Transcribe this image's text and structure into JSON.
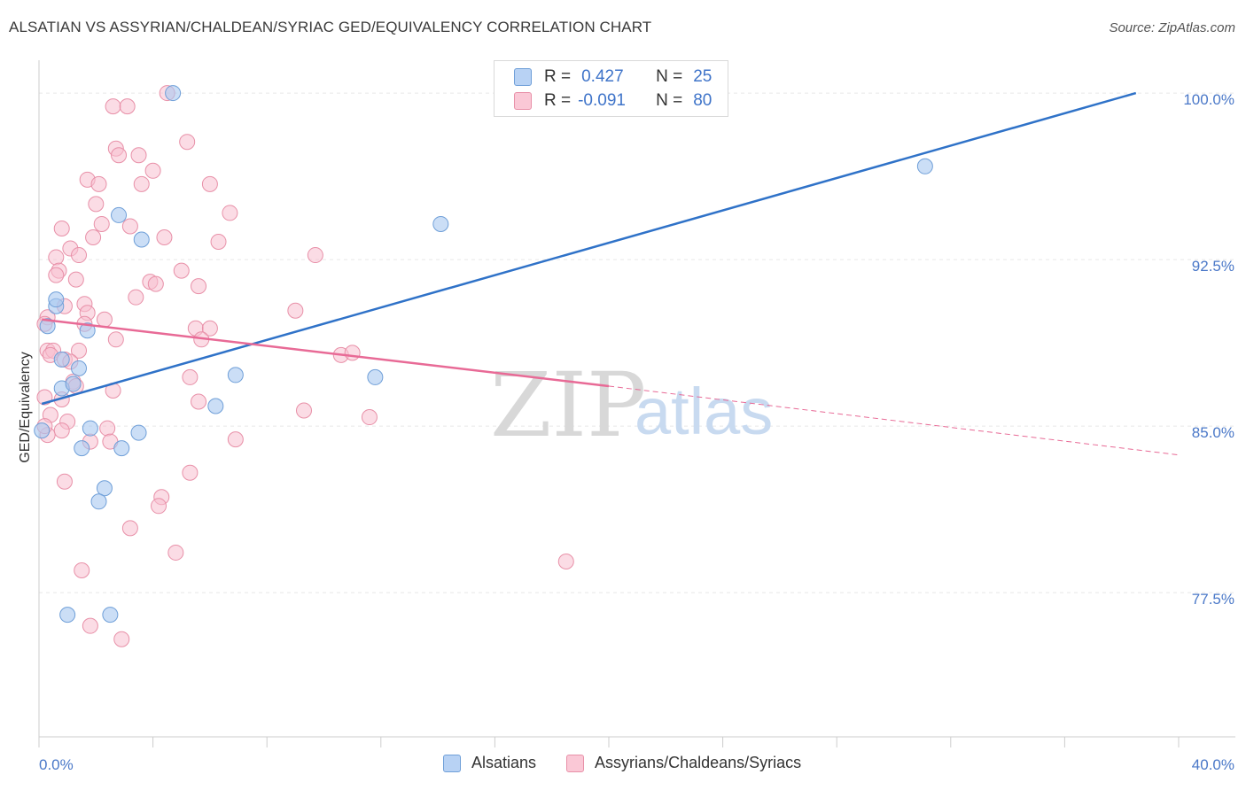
{
  "title": "ALSATIAN VS ASSYRIAN/CHALDEAN/SYRIAC GED/EQUIVALENCY CORRELATION CHART",
  "source": "Source: ZipAtlas.com",
  "watermark": {
    "zip": "ZIP",
    "atlas": "atlas"
  },
  "legend": {
    "r_label": "R =",
    "n_label": "N =",
    "series1": {
      "r": "0.427",
      "n": "25"
    },
    "series2": {
      "r": "-0.091",
      "n": "80"
    }
  },
  "chart_data": {
    "type": "scatter",
    "title": "ALSATIAN VS ASSYRIAN/CHALDEAN/SYRIAC GED/EQUIVALENCY CORRELATION CHART",
    "xlabel": "",
    "ylabel": "GED/Equivalency",
    "xlim": [
      0,
      40
    ],
    "ylim": [
      71.0,
      101.0
    ],
    "x_tick_labels": [
      "0.0%",
      "40.0%"
    ],
    "y_ticks": [
      77.5,
      85.0,
      92.5,
      100.0
    ],
    "y_tick_labels": [
      "77.5%",
      "85.0%",
      "92.5%",
      "100.0%"
    ],
    "grid": true,
    "series": [
      {
        "name": "Alsatians",
        "color": "#a8c8f0",
        "edge": "#6f9fd8",
        "line_color": "#2f72c8",
        "points": [
          [
            4.7,
            100.0
          ],
          [
            2.8,
            94.5
          ],
          [
            3.6,
            93.4
          ],
          [
            14.1,
            94.1
          ],
          [
            31.1,
            96.7
          ],
          [
            0.6,
            90.4
          ],
          [
            0.6,
            90.7
          ],
          [
            0.3,
            89.5
          ],
          [
            1.7,
            89.3
          ],
          [
            0.8,
            88.0
          ],
          [
            1.4,
            87.6
          ],
          [
            0.8,
            86.7
          ],
          [
            1.2,
            86.9
          ],
          [
            6.9,
            87.3
          ],
          [
            11.8,
            87.2
          ],
          [
            6.2,
            85.9
          ],
          [
            1.8,
            84.9
          ],
          [
            3.5,
            84.7
          ],
          [
            1.5,
            84.0
          ],
          [
            2.9,
            84.0
          ],
          [
            2.3,
            82.2
          ],
          [
            2.1,
            81.6
          ],
          [
            1.0,
            76.5
          ],
          [
            2.5,
            76.5
          ],
          [
            0.1,
            84.8
          ]
        ],
        "trend": {
          "x": [
            0.1,
            38.5
          ],
          "y": [
            86.0,
            100.0
          ]
        }
      },
      {
        "name": "Assyrians/Chaldeans/Syriacs",
        "color": "#f7c0d0",
        "edge": "#e890a8",
        "line_color": "#e86a96",
        "points": [
          [
            4.5,
            100.0
          ],
          [
            2.6,
            99.4
          ],
          [
            3.1,
            99.4
          ],
          [
            5.2,
            97.8
          ],
          [
            2.7,
            97.5
          ],
          [
            2.8,
            97.2
          ],
          [
            3.5,
            97.2
          ],
          [
            4.0,
            96.5
          ],
          [
            1.7,
            96.1
          ],
          [
            2.1,
            95.9
          ],
          [
            3.6,
            95.9
          ],
          [
            6.0,
            95.9
          ],
          [
            2.0,
            95.0
          ],
          [
            6.7,
            94.6
          ],
          [
            0.8,
            93.9
          ],
          [
            2.2,
            94.1
          ],
          [
            3.2,
            94.0
          ],
          [
            1.9,
            93.5
          ],
          [
            4.4,
            93.5
          ],
          [
            6.3,
            93.3
          ],
          [
            1.1,
            93.0
          ],
          [
            0.6,
            92.6
          ],
          [
            1.4,
            92.7
          ],
          [
            9.7,
            92.7
          ],
          [
            0.7,
            92.0
          ],
          [
            5.0,
            92.0
          ],
          [
            0.6,
            91.8
          ],
          [
            1.3,
            91.6
          ],
          [
            3.9,
            91.5
          ],
          [
            4.1,
            91.4
          ],
          [
            5.6,
            91.3
          ],
          [
            3.4,
            90.8
          ],
          [
            0.9,
            90.4
          ],
          [
            1.6,
            90.5
          ],
          [
            9.0,
            90.2
          ],
          [
            1.7,
            90.1
          ],
          [
            2.3,
            89.8
          ],
          [
            0.3,
            89.9
          ],
          [
            0.2,
            89.6
          ],
          [
            5.5,
            89.4
          ],
          [
            6.0,
            89.4
          ],
          [
            1.6,
            89.6
          ],
          [
            5.7,
            88.9
          ],
          [
            2.7,
            88.9
          ],
          [
            0.3,
            88.4
          ],
          [
            0.5,
            88.4
          ],
          [
            1.4,
            88.4
          ],
          [
            10.6,
            88.2
          ],
          [
            11.0,
            88.3
          ],
          [
            0.9,
            88.0
          ],
          [
            0.4,
            88.2
          ],
          [
            5.3,
            87.2
          ],
          [
            1.2,
            87.0
          ],
          [
            1.3,
            86.8
          ],
          [
            2.6,
            86.6
          ],
          [
            0.8,
            86.2
          ],
          [
            0.2,
            86.3
          ],
          [
            5.6,
            86.1
          ],
          [
            9.3,
            85.7
          ],
          [
            11.6,
            85.4
          ],
          [
            0.4,
            85.5
          ],
          [
            1.0,
            85.2
          ],
          [
            2.4,
            84.9
          ],
          [
            0.8,
            84.8
          ],
          [
            6.9,
            84.4
          ],
          [
            2.5,
            84.3
          ],
          [
            1.8,
            84.3
          ],
          [
            0.3,
            84.6
          ],
          [
            5.3,
            82.9
          ],
          [
            0.9,
            82.5
          ],
          [
            4.3,
            81.8
          ],
          [
            4.2,
            81.4
          ],
          [
            3.2,
            80.4
          ],
          [
            4.8,
            79.3
          ],
          [
            18.5,
            78.9
          ],
          [
            1.5,
            78.5
          ],
          [
            1.8,
            76.0
          ],
          [
            2.9,
            75.4
          ],
          [
            0.2,
            85.0
          ],
          [
            1.1,
            87.9
          ]
        ],
        "trend": {
          "x": [
            0.1,
            20.0
          ],
          "y": [
            89.8,
            86.8
          ]
        },
        "trend_dashed": {
          "x": [
            20.0,
            40.0
          ],
          "y": [
            86.8,
            83.7
          ]
        }
      }
    ]
  }
}
